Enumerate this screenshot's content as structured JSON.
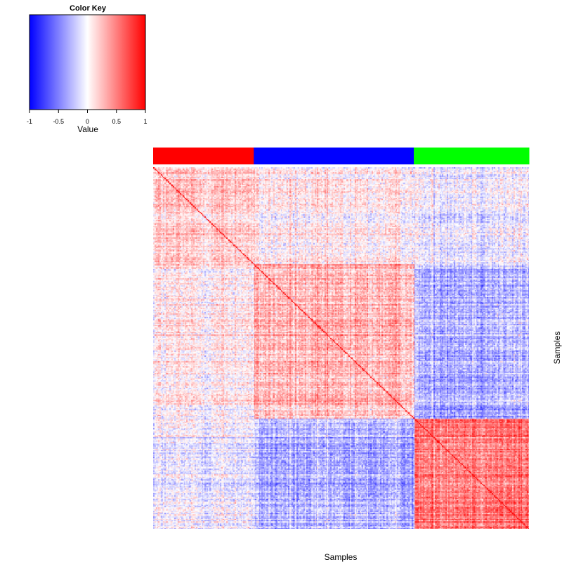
{
  "chart_data": {
    "type": "heatmap",
    "title": "",
    "xlabel": "Samples",
    "ylabel": "Samples",
    "value_range": [
      -1,
      1
    ],
    "diagonal_value": 1,
    "n_samples": 310,
    "groups": [
      {
        "color": "#ff0000",
        "size": 83
      },
      {
        "color": "#0000ff",
        "size": 132
      },
      {
        "color": "#00ff00",
        "size": 95
      }
    ],
    "block_mean_correlation": [
      [
        0.2,
        0.05,
        -0.05
      ],
      [
        0.05,
        0.25,
        -0.3
      ],
      [
        -0.05,
        -0.3,
        0.55
      ]
    ],
    "color_key": {
      "title": "Color Key",
      "label": "Value",
      "low_color": "#0000ff",
      "mid_color": "#ffffff",
      "high_color": "#ff0000",
      "ticks": [
        -1,
        -0.5,
        0,
        0.5,
        1
      ],
      "tick_labels": [
        "-1",
        "-0.5",
        "0",
        "0.5",
        "1"
      ]
    }
  }
}
